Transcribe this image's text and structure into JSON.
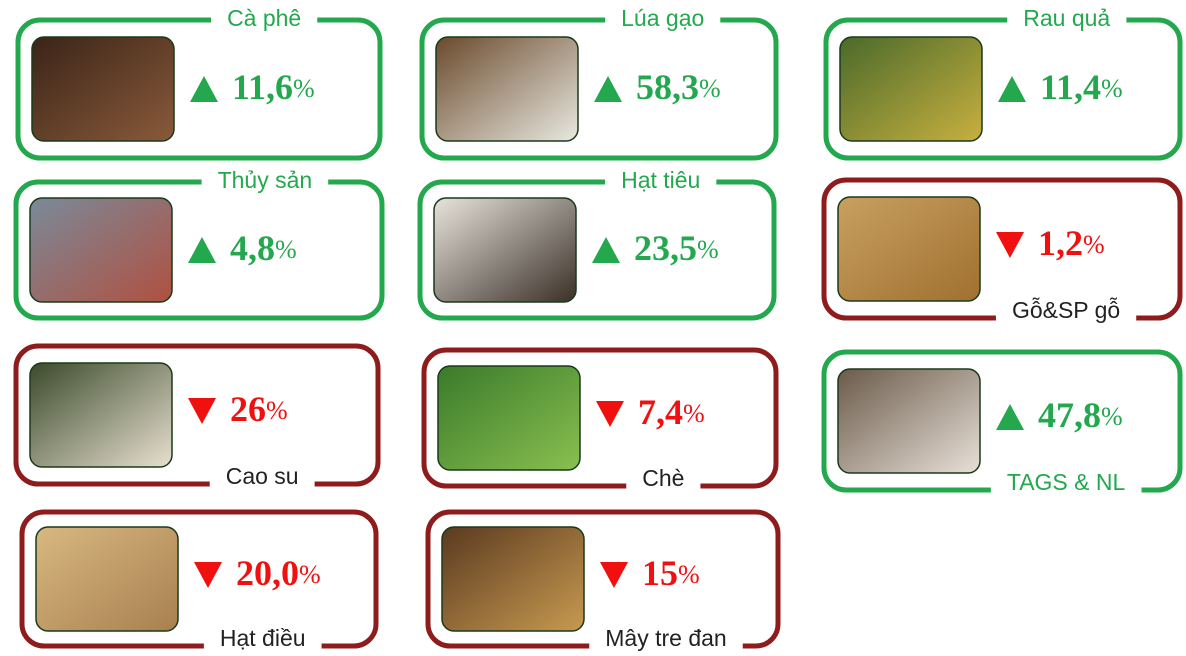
{
  "unit": "%",
  "items": [
    {
      "name": "Cà phê",
      "value": "11,6",
      "direction": "up",
      "label_position": "top"
    },
    {
      "name": "Lúa gạo",
      "value": "58,3",
      "direction": "up",
      "label_position": "top"
    },
    {
      "name": "Rau quả",
      "value": "11,4",
      "direction": "up",
      "label_position": "top"
    },
    {
      "name": "Thủy sản",
      "value": "4,8",
      "direction": "up",
      "label_position": "top"
    },
    {
      "name": "Hạt tiêu",
      "value": "23,5",
      "direction": "up",
      "label_position": "top"
    },
    {
      "name": "Gỗ&SP gỗ",
      "value": "1,2",
      "direction": "down",
      "label_position": "bottom"
    },
    {
      "name": "Cao su",
      "value": "26",
      "direction": "down",
      "label_position": "bottom"
    },
    {
      "name": "Chè",
      "value": "7,4",
      "direction": "down",
      "label_position": "bottom"
    },
    {
      "name": "TAGS & NL",
      "value": "47,8",
      "direction": "up",
      "label_position": "bottom"
    },
    {
      "name": "Hạt điều",
      "value": "20,0",
      "direction": "down",
      "label_position": "bottom"
    },
    {
      "name": "Mây tre đan",
      "value": "15",
      "direction": "down",
      "label_position": "bottom"
    }
  ]
}
